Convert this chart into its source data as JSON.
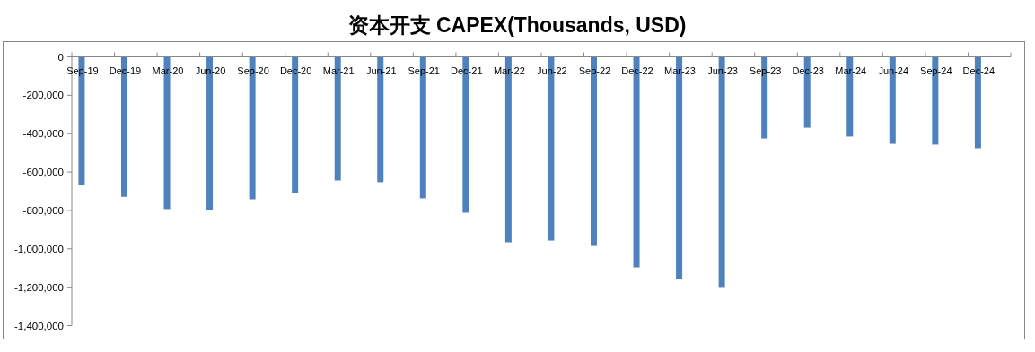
{
  "chart_data": {
    "type": "bar",
    "title": "资本开支 CAPEX(Thousands, USD)",
    "categories": [
      "Sep-19",
      "Dec-19",
      "Mar-20",
      "Jun-20",
      "Sep-20",
      "Dec-20",
      "Mar-21",
      "Jun-21",
      "Sep-21",
      "Dec-21",
      "Mar-22",
      "Jun-22",
      "Sep-22",
      "Dec-22",
      "Mar-23",
      "Jun-23",
      "Sep-23",
      "Dec-23",
      "Mar-24",
      "Jun-24",
      "Sep-24",
      "Dec-24"
    ],
    "values": [
      -667000,
      -729000,
      -793000,
      -798000,
      -742000,
      -709000,
      -644000,
      -653000,
      -737000,
      -812000,
      -966000,
      -957000,
      -985000,
      -1097000,
      -1157000,
      -1199000,
      -425000,
      -369000,
      -415000,
      -453000,
      -457000,
      -476000
    ],
    "color": "#4f81bd",
    "ylim": [
      -1400000,
      0
    ],
    "yticks": [
      {
        "value": 0,
        "label": "0"
      },
      {
        "value": -200000,
        "label": "-200,000"
      },
      {
        "value": -400000,
        "label": "-400,000"
      },
      {
        "value": -600000,
        "label": "-600,000"
      },
      {
        "value": -800000,
        "label": "-800,000"
      },
      {
        "value": -1000000,
        "label": "-1,000,000"
      },
      {
        "value": -1200000,
        "label": "-1,200,000"
      },
      {
        "value": -1400000,
        "label": "-1,400,000"
      }
    ],
    "grid": false
  }
}
